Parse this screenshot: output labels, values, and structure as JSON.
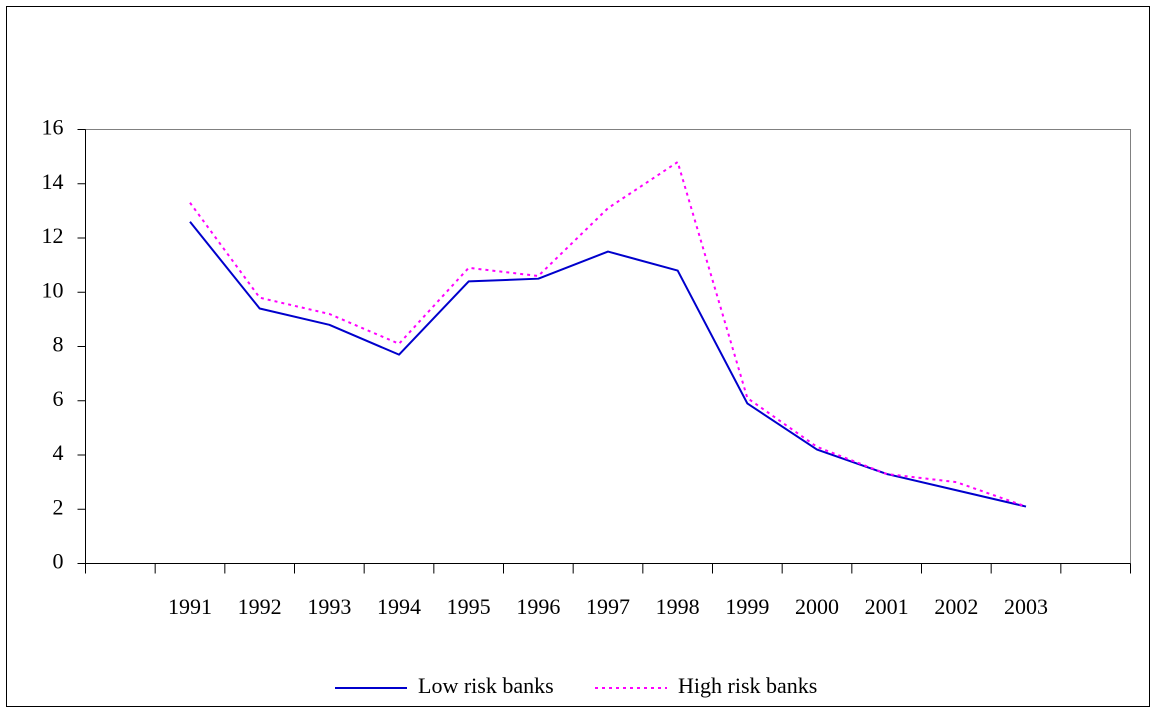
{
  "chart_data": {
    "type": "line",
    "categories": [
      null,
      "1991",
      "1992",
      "1993",
      "1994",
      "1995",
      "1996",
      "1997",
      "1998",
      "1999",
      "2000",
      "2001",
      "2002",
      "2003",
      null
    ],
    "series": [
      {
        "name": "Low risk banks",
        "color": "#0000cc",
        "dash": "solid",
        "values": [
          null,
          12.6,
          9.4,
          8.8,
          7.7,
          10.4,
          10.5,
          11.5,
          10.8,
          5.9,
          4.2,
          3.3,
          2.7,
          2.1,
          null
        ]
      },
      {
        "name": "High risk banks",
        "color": "#ff00ff",
        "dash": "dotted",
        "values": [
          null,
          13.3,
          9.8,
          9.2,
          8.1,
          10.9,
          10.6,
          13.1,
          14.8,
          6.1,
          4.3,
          3.3,
          3.0,
          2.1,
          null
        ]
      }
    ],
    "ylim": [
      0,
      16
    ],
    "yticks": [
      0,
      2,
      4,
      6,
      8,
      10,
      12,
      14,
      16
    ],
    "grid": false,
    "legend": "bottom"
  }
}
